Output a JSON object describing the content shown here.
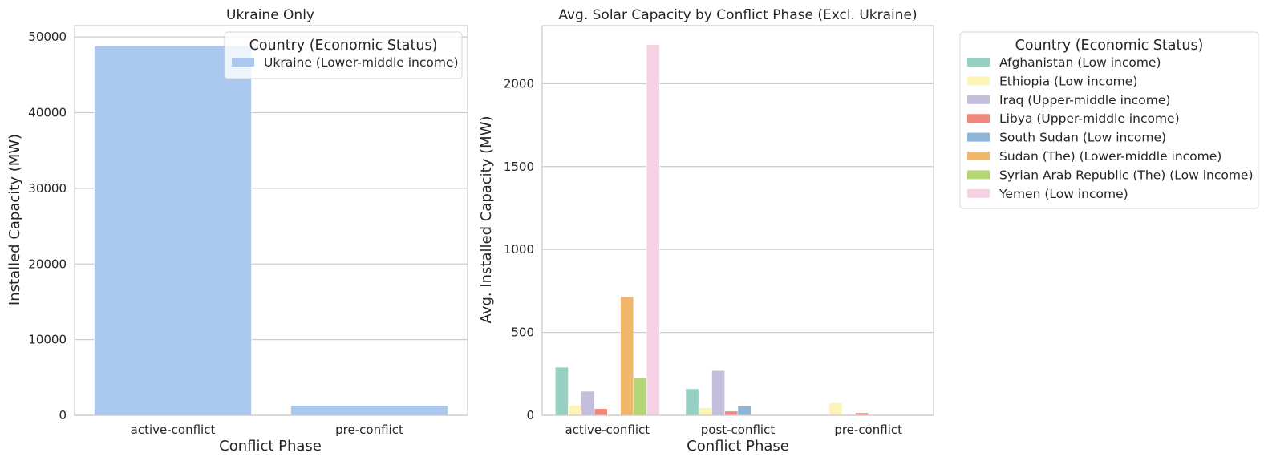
{
  "chart_data": [
    {
      "type": "bar",
      "title": "Ukraine Only",
      "xlabel": "Conflict Phase",
      "ylabel": "Installed Capacity (MW)",
      "categories": [
        "active-conflict",
        "pre-conflict"
      ],
      "ylim": [
        0,
        51500
      ],
      "yticks": [
        0,
        10000,
        20000,
        30000,
        40000,
        50000
      ],
      "grid": true,
      "legend": {
        "title": "Country (Economic Status)",
        "placement": "top-right"
      },
      "series": [
        {
          "name": "Ukraine (Lower-middle income)",
          "color": "#abc9ee",
          "values": [
            48800,
            1300
          ]
        }
      ]
    },
    {
      "type": "bar",
      "title": "Avg. Solar Capacity by Conflict Phase (Excl. Ukraine)",
      "xlabel": "Conflict Phase",
      "ylabel": "Avg. Installed Capacity (MW)",
      "categories": [
        "active-conflict",
        "post-conflict",
        "pre-conflict"
      ],
      "ylim": [
        0,
        2350
      ],
      "yticks": [
        0,
        500,
        1000,
        1500,
        2000
      ],
      "grid": true,
      "legend": {
        "title": "Country (Economic Status)",
        "placement": "outside-right"
      },
      "series": [
        {
          "name": "Afghanistan (Low income)",
          "color": "#96d0c2",
          "values": [
            290,
            160,
            0
          ]
        },
        {
          "name": "Ethiopia (Low income)",
          "color": "#fbf6b8",
          "values": [
            60,
            45,
            75
          ]
        },
        {
          "name": "Iraq (Upper-middle income)",
          "color": "#c3bedb",
          "values": [
            145,
            270,
            0
          ]
        },
        {
          "name": "Libya (Upper-middle income)",
          "color": "#ee887e",
          "values": [
            40,
            25,
            15
          ]
        },
        {
          "name": "South Sudan (Low income)",
          "color": "#8eb4d6",
          "values": [
            0,
            55,
            0
          ]
        },
        {
          "name": "Sudan (The) (Lower-middle income)",
          "color": "#f0b66b",
          "values": [
            715,
            0,
            0
          ]
        },
        {
          "name": "Syrian Arab Republic (The) (Low income)",
          "color": "#b5d676",
          "values": [
            225,
            0,
            0
          ]
        },
        {
          "name": "Yemen (Low income)",
          "color": "#f6d1e3",
          "values": [
            2235,
            0,
            0
          ]
        }
      ]
    }
  ]
}
